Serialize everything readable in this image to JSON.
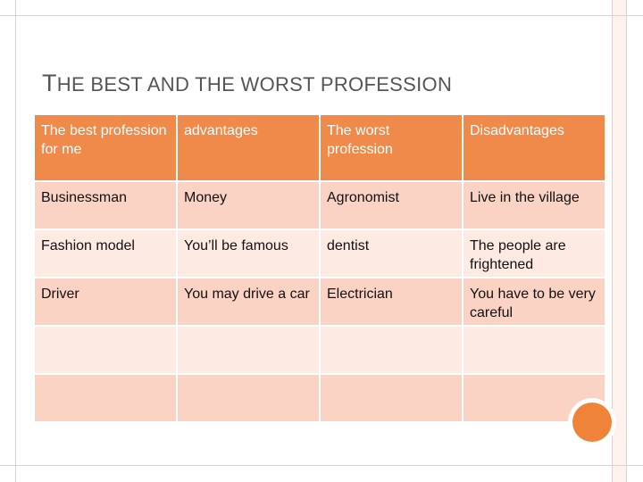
{
  "slide": {
    "title_first_letter": "T",
    "title_rest": "HE BEST AND THE WORST PROFESSION"
  },
  "table": {
    "headers": [
      "The best profession for me",
      "advantages",
      "The worst profession",
      "Disadvantages"
    ],
    "rows": [
      [
        "Businessman",
        "Money",
        "Agronomist",
        "Live in the village"
      ],
      [
        "Fashion model",
        "You’ll be famous",
        "dentist",
        "The people are frightened"
      ],
      [
        "Driver",
        "You may drive a car",
        "Electrician",
        "You have to be very careful"
      ],
      [
        "",
        "",
        "",
        ""
      ],
      [
        "",
        "",
        "",
        ""
      ]
    ]
  },
  "colors": {
    "header_bg": "#f08a4b",
    "row_bg": "#fbd3c5",
    "row_alt_bg": "#fdeae3",
    "accent": "#f0833a"
  }
}
